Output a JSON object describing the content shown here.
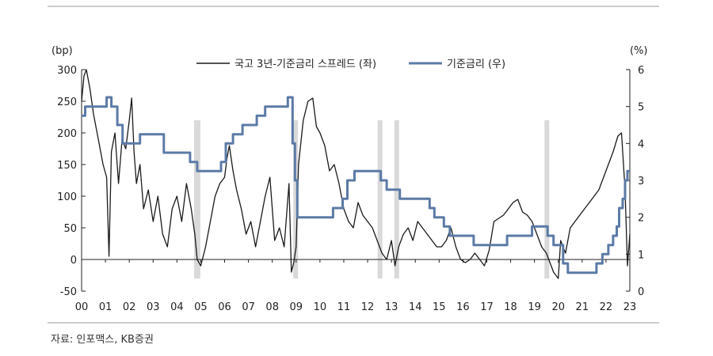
{
  "chart_data": {
    "type": "line",
    "left_unit": "(bp)",
    "right_unit": "(%)",
    "source": "자료: 인포맥스, KB증권",
    "x_ticks": [
      "00",
      "01",
      "02",
      "03",
      "04",
      "05",
      "06",
      "07",
      "08",
      "09",
      "10",
      "11",
      "12",
      "13",
      "14",
      "15",
      "16",
      "17",
      "18",
      "19",
      "20",
      "21",
      "22",
      "23"
    ],
    "x_range": [
      2000.0,
      2023.0
    ],
    "y_left": {
      "range": [
        -50,
        300
      ],
      "ticks": [
        -50,
        0,
        50,
        100,
        150,
        200,
        250,
        300
      ]
    },
    "y_right": {
      "range": [
        0,
        6
      ],
      "ticks": [
        0,
        1,
        2,
        3,
        4,
        5,
        6
      ]
    },
    "series": [
      {
        "name": "국고 3년-기준금리 스프레드 (좌)",
        "axis": "left",
        "color": "#1a1a1a",
        "x": [
          2000.0,
          2000.1,
          2000.2,
          2000.35,
          2000.5,
          2000.7,
          2000.9,
          2001.05,
          2001.15,
          2001.25,
          2001.4,
          2001.55,
          2001.7,
          2001.85,
          2002.0,
          2002.1,
          2002.2,
          2002.3,
          2002.45,
          2002.6,
          2002.8,
          2003.0,
          2003.2,
          2003.4,
          2003.6,
          2003.8,
          2004.0,
          2004.2,
          2004.4,
          2004.6,
          2004.75,
          2004.85,
          2005.0,
          2005.2,
          2005.4,
          2005.6,
          2005.8,
          2006.0,
          2006.1,
          2006.2,
          2006.35,
          2006.5,
          2006.7,
          2006.9,
          2007.1,
          2007.3,
          2007.5,
          2007.7,
          2007.9,
          2008.1,
          2008.3,
          2008.5,
          2008.7,
          2008.8,
          2008.9,
          2009.0,
          2009.1,
          2009.3,
          2009.5,
          2009.7,
          2009.85,
          2010.0,
          2010.2,
          2010.4,
          2010.6,
          2010.8,
          2011.0,
          2011.2,
          2011.4,
          2011.6,
          2011.8,
          2012.0,
          2012.2,
          2012.4,
          2012.6,
          2012.8,
          2013.0,
          2013.15,
          2013.3,
          2013.5,
          2013.7,
          2013.9,
          2014.1,
          2014.3,
          2014.5,
          2014.7,
          2014.9,
          2015.1,
          2015.3,
          2015.5,
          2015.7,
          2015.9,
          2016.1,
          2016.3,
          2016.5,
          2016.7,
          2016.9,
          2017.1,
          2017.3,
          2017.5,
          2017.7,
          2017.9,
          2018.1,
          2018.3,
          2018.5,
          2018.7,
          2018.9,
          2019.1,
          2019.3,
          2019.5,
          2019.65,
          2019.8,
          2020.0,
          2020.1,
          2020.3,
          2020.5,
          2020.7,
          2020.9,
          2021.1,
          2021.3,
          2021.5,
          2021.7,
          2021.9,
          2022.1,
          2022.3,
          2022.5,
          2022.65,
          2022.8,
          2022.9,
          2023.0
        ],
        "y": [
          250,
          290,
          300,
          270,
          230,
          190,
          150,
          130,
          5,
          170,
          200,
          120,
          190,
          175,
          220,
          255,
          170,
          120,
          150,
          80,
          110,
          60,
          100,
          40,
          20,
          80,
          100,
          60,
          120,
          80,
          40,
          0,
          -10,
          20,
          60,
          100,
          120,
          130,
          160,
          180,
          140,
          110,
          80,
          40,
          60,
          20,
          60,
          100,
          130,
          30,
          50,
          20,
          120,
          -20,
          -5,
          20,
          150,
          220,
          250,
          255,
          210,
          200,
          180,
          140,
          150,
          120,
          80,
          60,
          50,
          90,
          70,
          60,
          50,
          30,
          10,
          0,
          30,
          -10,
          20,
          40,
          50,
          30,
          60,
          50,
          40,
          30,
          20,
          20,
          30,
          50,
          20,
          0,
          -5,
          0,
          10,
          0,
          -10,
          15,
          60,
          65,
          70,
          80,
          90,
          95,
          75,
          70,
          60,
          40,
          20,
          10,
          -5,
          -20,
          -30,
          30,
          10,
          50,
          60,
          70,
          80,
          90,
          100,
          110,
          130,
          150,
          170,
          195,
          200,
          110,
          -10,
          40
        ]
      },
      {
        "name": "기준금리 (우)",
        "axis": "right",
        "color": "#5b7aa6",
        "x": [
          2000.0,
          2000.15,
          2000.15,
          2001.05,
          2001.05,
          2001.25,
          2001.25,
          2001.5,
          2001.5,
          2001.72,
          2001.72,
          2002.45,
          2002.45,
          2003.45,
          2003.45,
          2003.85,
          2003.85,
          2004.55,
          2004.55,
          2004.85,
          2004.85,
          2005.85,
          2005.85,
          2006.05,
          2006.05,
          2006.35,
          2006.35,
          2006.75,
          2006.75,
          2007.35,
          2007.35,
          2007.7,
          2007.7,
          2008.65,
          2008.65,
          2008.85,
          2008.85,
          2008.95,
          2008.95,
          2009.05,
          2009.05,
          2009.15,
          2009.15,
          2010.55,
          2010.55,
          2010.95,
          2010.95,
          2011.15,
          2011.15,
          2011.45,
          2011.45,
          2012.55,
          2012.55,
          2012.8,
          2012.8,
          2013.35,
          2013.35,
          2014.6,
          2014.6,
          2014.8,
          2014.8,
          2015.2,
          2015.2,
          2015.45,
          2015.45,
          2016.45,
          2016.45,
          2017.85,
          2017.85,
          2018.9,
          2018.9,
          2019.55,
          2019.55,
          2019.8,
          2019.8,
          2020.2,
          2020.2,
          2020.4,
          2020.4,
          2021.6,
          2021.6,
          2021.85,
          2021.85,
          2022.1,
          2022.1,
          2022.3,
          2022.3,
          2022.45,
          2022.45,
          2022.55,
          2022.55,
          2022.7,
          2022.7,
          2022.8,
          2022.8,
          2022.9,
          2022.9,
          2023.0
        ],
        "y": [
          4.75,
          4.75,
          5.0,
          5.0,
          5.25,
          5.25,
          5.0,
          5.0,
          4.5,
          4.5,
          4.0,
          4.0,
          4.25,
          4.25,
          3.75,
          3.75,
          3.75,
          3.75,
          3.5,
          3.5,
          3.25,
          3.25,
          3.5,
          3.5,
          4.0,
          4.0,
          4.25,
          4.25,
          4.5,
          4.5,
          4.75,
          4.75,
          5.0,
          5.0,
          5.25,
          5.25,
          4.0,
          4.0,
          3.0,
          3.0,
          2.0,
          2.0,
          2.0,
          2.0,
          2.25,
          2.25,
          2.5,
          2.5,
          3.0,
          3.0,
          3.25,
          3.25,
          3.0,
          3.0,
          2.75,
          2.75,
          2.5,
          2.5,
          2.25,
          2.25,
          2.0,
          2.0,
          1.75,
          1.75,
          1.5,
          1.5,
          1.25,
          1.25,
          1.5,
          1.5,
          1.75,
          1.75,
          1.5,
          1.5,
          1.25,
          1.25,
          0.75,
          0.75,
          0.5,
          0.5,
          0.75,
          0.75,
          1.0,
          1.0,
          1.25,
          1.25,
          1.5,
          1.5,
          1.75,
          1.75,
          2.25,
          2.25,
          2.5,
          2.5,
          3.0,
          3.0,
          3.25,
          3.25
        ]
      }
    ],
    "shaded_periods": [
      [
        2004.72,
        2004.98
      ],
      [
        2008.88,
        2009.08
      ],
      [
        2012.42,
        2012.62
      ],
      [
        2013.12,
        2013.32
      ],
      [
        2019.42,
        2019.62
      ]
    ],
    "shade_color": "#d9d9d9"
  }
}
